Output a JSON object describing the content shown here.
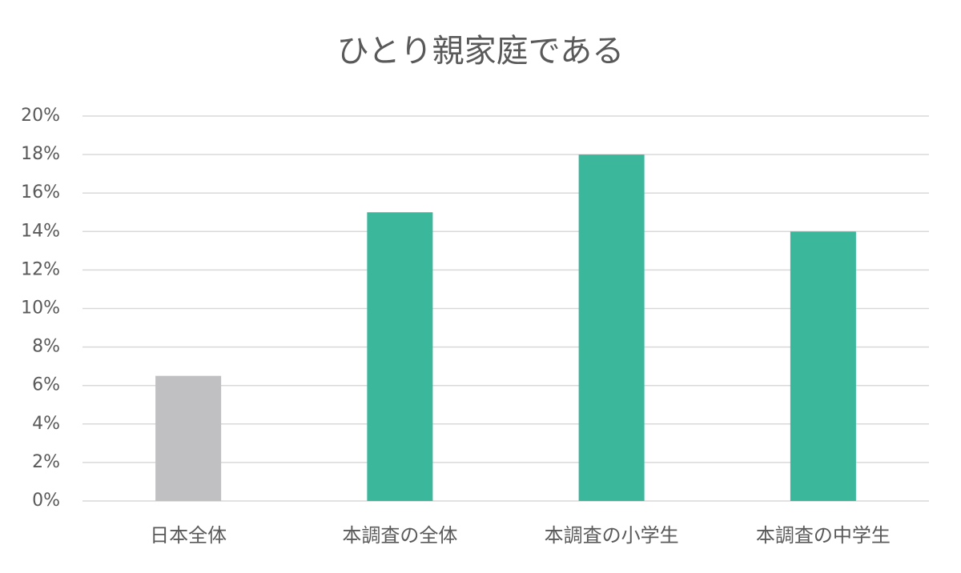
{
  "chart_data": {
    "type": "bar",
    "title": "ひとり親家庭である",
    "categories": [
      "日本全体",
      "本調査の全体",
      "本調査の小学生",
      "本調査の中学生"
    ],
    "values": [
      6.5,
      15,
      18,
      14
    ],
    "colors": [
      "#c0bfc1",
      "#3bb89c",
      "#3bb89c",
      "#3bb89c"
    ],
    "ylim": [
      0,
      20
    ],
    "yticks": [
      {
        "value": 0,
        "label": "0%"
      },
      {
        "value": 2,
        "label": "2%"
      },
      {
        "value": 4,
        "label": "4%"
      },
      {
        "value": 6,
        "label": "6%"
      },
      {
        "value": 8,
        "label": "8%"
      },
      {
        "value": 10,
        "label": "10%"
      },
      {
        "value": 12,
        "label": "12%"
      },
      {
        "value": 14,
        "label": "14%"
      },
      {
        "value": 16,
        "label": "16%"
      },
      {
        "value": 18,
        "label": "18%"
      },
      {
        "value": 20,
        "label": "20%"
      }
    ],
    "grid": true
  }
}
